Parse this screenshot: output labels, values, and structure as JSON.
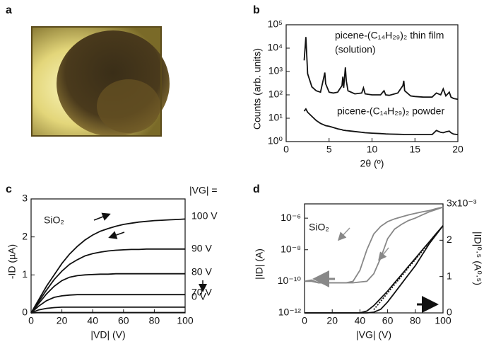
{
  "figure": {
    "panel_labels": [
      "a",
      "b",
      "c",
      "d"
    ]
  },
  "chart_data": [
    {
      "type": "line",
      "ylog": true,
      "xlabel": "2θ (º)",
      "ylabel": "Counts (arb. units)",
      "annotations": [
        "picene-(C₁₄H₂₉)₂ thin film",
        "(solution)",
        "picene-(C₁₄H₂₉)₂ powder"
      ],
      "xlim": [
        0,
        20
      ],
      "xticks": [
        0,
        5,
        10,
        15,
        20
      ],
      "ylim": [
        1,
        100000
      ],
      "yticks": [
        {
          "value": 1,
          "label": "10⁰"
        },
        {
          "value": 10,
          "label": "10¹"
        },
        {
          "value": 100,
          "label": "10²"
        },
        {
          "value": 1000,
          "label": "10³"
        },
        {
          "value": 10000,
          "label": "10⁴"
        },
        {
          "value": 100000,
          "label": "10⁵"
        }
      ],
      "x": [
        2.1,
        2.3,
        2.5,
        3,
        3.5,
        4,
        4.4,
        4.5,
        4.6,
        5,
        5.5,
        6,
        6.5,
        6.6,
        6.7,
        6.9,
        7.0,
        7.2,
        8,
        8.8,
        9.0,
        9.2,
        10,
        11,
        11.4,
        11.6,
        12,
        13,
        13.6,
        13.7,
        13.8,
        14.5,
        15,
        16,
        17,
        17.5,
        18,
        18.3,
        18.6,
        19,
        19.2,
        19.5,
        20
      ],
      "series": [
        {
          "color": "#111111",
          "values": [
            3000,
            30000,
            800,
            220,
            150,
            130,
            600,
            900,
            300,
            130,
            120,
            130,
            250,
            600,
            200,
            1500,
            400,
            150,
            110,
            120,
            200,
            110,
            100,
            100,
            150,
            100,
            95,
            120,
            250,
            400,
            150,
            90,
            85,
            80,
            80,
            120,
            100,
            180,
            90,
            130,
            80,
            70,
            65
          ]
        },
        {
          "color": "#111111",
          "values": [
            20,
            25,
            18,
            12,
            8,
            6,
            5.2,
            5,
            4.8,
            4.5,
            4,
            3.5,
            3.2,
            3.1,
            3.05,
            3,
            2.95,
            2.9,
            2.7,
            2.5,
            2.45,
            2.4,
            2.3,
            2.2,
            2.15,
            2.12,
            2.1,
            2.05,
            2.02,
            2,
            2,
            2,
            2,
            2,
            2,
            3,
            2.5,
            2.4,
            2.6,
            2.8,
            2.4,
            2.1,
            2
          ]
        }
      ]
    },
    {
      "type": "line",
      "xlabel": "|VD| (V)",
      "ylabel": "-ID (µA)",
      "annotations": [
        "SiO₂",
        "|VG| ="
      ],
      "xlim": [
        0,
        100
      ],
      "xticks": [
        0,
        20,
        40,
        60,
        80,
        100
      ],
      "ylim": [
        0,
        3
      ],
      "yticks": [
        0,
        1,
        2,
        3
      ],
      "x": [
        0,
        5,
        10,
        15,
        20,
        25,
        30,
        35,
        40,
        45,
        50,
        55,
        60,
        65,
        70,
        75,
        80,
        85,
        90,
        95,
        100
      ],
      "series": [
        {
          "name": "100 V",
          "color": "#111111",
          "values": [
            0,
            0.35,
            0.7,
            1.0,
            1.3,
            1.55,
            1.75,
            1.92,
            2.05,
            2.15,
            2.22,
            2.28,
            2.33,
            2.36,
            2.39,
            2.41,
            2.43,
            2.44,
            2.45,
            2.46,
            2.47
          ]
        },
        {
          "name": "90 V",
          "color": "#111111",
          "values": [
            0,
            0.3,
            0.6,
            0.88,
            1.1,
            1.28,
            1.4,
            1.5,
            1.56,
            1.6,
            1.63,
            1.65,
            1.66,
            1.67,
            1.67,
            1.68,
            1.68,
            1.68,
            1.68,
            1.68,
            1.68
          ]
        },
        {
          "name": "80 V",
          "color": "#111111",
          "values": [
            0,
            0.25,
            0.5,
            0.7,
            0.85,
            0.94,
            0.98,
            1.0,
            1.01,
            1.02,
            1.02,
            1.03,
            1.03,
            1.03,
            1.03,
            1.03,
            1.03,
            1.03,
            1.03,
            1.03,
            1.03
          ]
        },
        {
          "name": "70 V",
          "color": "#111111",
          "values": [
            0,
            0.18,
            0.32,
            0.41,
            0.45,
            0.47,
            0.48,
            0.48,
            0.48,
            0.48,
            0.48,
            0.48,
            0.48,
            0.48,
            0.48,
            0.48,
            0.48,
            0.48,
            0.48,
            0.48,
            0.48
          ]
        },
        {
          "color": "#111111",
          "values": [
            0,
            0.08,
            0.12,
            0.14,
            0.15,
            0.15,
            0.15,
            0.15,
            0.15,
            0.15,
            0.15,
            0.15,
            0.15,
            0.15,
            0.15,
            0.15,
            0.15,
            0.15,
            0.15,
            0.15,
            0.15
          ]
        },
        {
          "name": "0 V",
          "color": "#111111",
          "values": [
            0,
            0.01,
            0.01,
            0.01,
            0.01,
            0.01,
            0.01,
            0.01,
            0.01,
            0.01,
            0.01,
            0.01,
            0.01,
            0.01,
            0.01,
            0.01,
            0.01,
            0.01,
            0.01,
            0.01,
            0.01
          ]
        }
      ]
    },
    {
      "type": "line",
      "ylog": true,
      "xlabel": "|VG| (V)",
      "ylabel": "|ID| (A)",
      "y2label": "|ID|⁰·⁵ (A⁰·⁵)",
      "annotations": [
        "SiO₂"
      ],
      "xlim": [
        0,
        100
      ],
      "xticks": [
        0,
        20,
        40,
        60,
        80,
        100
      ],
      "ylim": [
        1e-12,
        8e-06
      ],
      "yticks": [
        {
          "value": 1e-12,
          "label": "10⁻¹²"
        },
        {
          "value": 1e-10,
          "label": "10⁻¹⁰"
        },
        {
          "value": 1e-08,
          "label": "10⁻⁸"
        },
        {
          "value": 1e-06,
          "label": "10⁻⁶"
        }
      ],
      "y2lim": [
        0,
        0.003
      ],
      "y2ticks": [
        {
          "value": 0,
          "label": "0"
        },
        {
          "value": 0.001,
          "label": "1"
        },
        {
          "value": 0.002,
          "label": "2"
        },
        {
          "value": 0.003,
          "label": "3x10⁻³"
        }
      ],
      "x": [
        0,
        5,
        10,
        15,
        20,
        25,
        30,
        35,
        40,
        45,
        50,
        55,
        60,
        65,
        70,
        75,
        80,
        85,
        90,
        95,
        100
      ],
      "series": [
        {
          "color": "#888888",
          "values": [
            1e-10,
            1.2e-10,
            8e-11,
            8e-11,
            8e-11,
            8e-11,
            8e-11,
            1e-10,
            5e-10,
            1e-08,
            1e-07,
            3e-07,
            6e-07,
            9e-07,
            1.2e-06,
            1.6e-06,
            2e-06,
            2.5e-06,
            3e-06,
            4e-06,
            5e-06
          ]
        },
        {
          "color": "#888888",
          "values": [
            1e-10,
            1e-10,
            8e-11,
            8e-11,
            8e-11,
            8e-11,
            8e-11,
            8e-11,
            9e-11,
            1e-10,
            3e-10,
            3e-09,
            5e-08,
            2e-07,
            4e-07,
            7e-07,
            1e-06,
            1.6e-06,
            2.5e-06,
            3.5e-06,
            5e-06
          ]
        },
        {
          "color": "#111111",
          "axis": "y2",
          "values": [
            0,
            0,
            0,
            0,
            0,
            0,
            0,
            0,
            0,
            5e-05,
            0.0002,
            0.0004,
            0.0006,
            0.00083,
            0.00105,
            0.00128,
            0.0015,
            0.00173,
            0.00195,
            0.00218,
            0.0024
          ]
        },
        {
          "color": "#111111",
          "axis": "y2",
          "values": [
            0,
            0,
            0,
            0,
            0,
            0,
            0,
            0,
            0,
            0,
            2e-05,
            0.0001,
            0.0003,
            0.00055,
            0.0008,
            0.00105,
            0.0013,
            0.0016,
            0.0019,
            0.00215,
            0.0024
          ]
        },
        {
          "color": "#111111",
          "axis": "y2",
          "dash": "2,2",
          "values": [
            null,
            null,
            null,
            null,
            null,
            null,
            null,
            null,
            null,
            null,
            9e-05,
            0.00032,
            0.00055,
            0.00078,
            0.00101,
            0.00124,
            0.00147,
            0.0017,
            0.00193,
            0.00216,
            0.0024
          ]
        }
      ]
    }
  ]
}
